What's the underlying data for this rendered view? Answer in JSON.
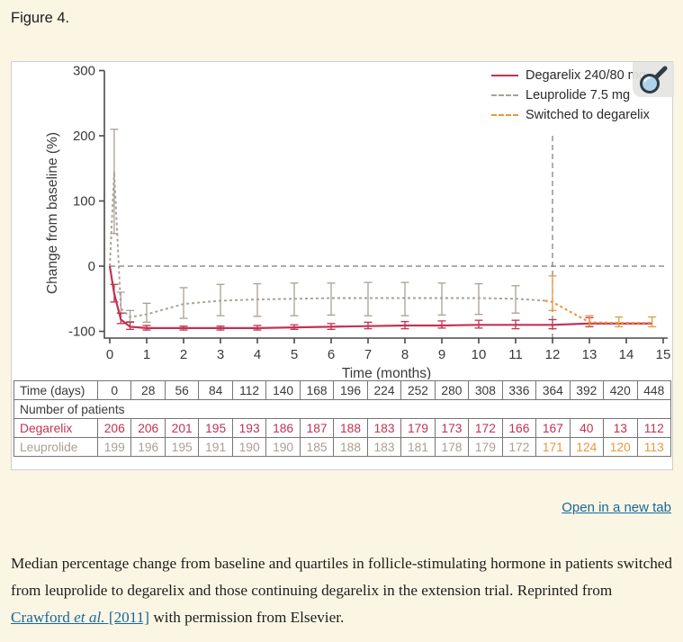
{
  "page": {
    "title": "Figure 4."
  },
  "figure": {
    "open_link_label": "Open in a new tab"
  },
  "chart_data": {
    "type": "line",
    "title": "",
    "xlabel": "Time (months)",
    "ylabel": "Change from baseline (%)",
    "xlim": [
      0,
      15
    ],
    "ylim": [
      -100,
      300
    ],
    "xticks": [
      0,
      1,
      2,
      3,
      4,
      5,
      6,
      7,
      8,
      9,
      10,
      11,
      12,
      13,
      14,
      15
    ],
    "yticks": [
      -100,
      0,
      100,
      200,
      300
    ],
    "grid": false,
    "legend_position": "top-right",
    "reference_lines": {
      "horizontal_y": 0,
      "vertical_x": 12,
      "vertical_top": 200
    },
    "series": [
      {
        "name": "Degarelix 240/80 mg",
        "color": "#c13352",
        "style": "solid",
        "width": 2.2,
        "z": 2,
        "points": [
          {
            "x": 0,
            "y": 0
          },
          {
            "x": 0.12,
            "y": -42,
            "lo": -55,
            "hi": -28
          },
          {
            "x": 0.3,
            "y": -82,
            "lo": -88,
            "hi": -72
          },
          {
            "x": 0.55,
            "y": -93,
            "lo": -97,
            "hi": -86
          },
          {
            "x": 1,
            "y": -95,
            "lo": -98,
            "hi": -91
          },
          {
            "x": 2,
            "y": -95,
            "lo": -98,
            "hi": -92
          },
          {
            "x": 3,
            "y": -95,
            "lo": -98,
            "hi": -92
          },
          {
            "x": 4,
            "y": -95,
            "lo": -98,
            "hi": -91
          },
          {
            "x": 5,
            "y": -94,
            "lo": -97,
            "hi": -90
          },
          {
            "x": 6,
            "y": -93,
            "lo": -97,
            "hi": -88
          },
          {
            "x": 7,
            "y": -92,
            "lo": -96,
            "hi": -86
          },
          {
            "x": 8,
            "y": -91,
            "lo": -96,
            "hi": -85
          },
          {
            "x": 9,
            "y": -91,
            "lo": -95,
            "hi": -84
          },
          {
            "x": 10,
            "y": -90,
            "lo": -95,
            "hi": -83
          },
          {
            "x": 11,
            "y": -90,
            "lo": -96,
            "hi": -83
          },
          {
            "x": 12,
            "y": -90,
            "lo": -96,
            "hi": -82
          },
          {
            "x": 13,
            "y": -88,
            "lo": -93,
            "hi": -79
          },
          {
            "x": 13.8,
            "y": -88
          },
          {
            "x": 14.7,
            "y": -88
          }
        ]
      },
      {
        "name": "Leuprolide 7.5 mg",
        "color": "#a9a094",
        "style": "dashed",
        "width": 1.9,
        "z": 1,
        "points": [
          {
            "x": 0,
            "y": 0
          },
          {
            "x": 0.12,
            "y": 145,
            "lo": 50,
            "hi": 210
          },
          {
            "x": 0.3,
            "y": -65,
            "lo": -72,
            "hi": -40
          },
          {
            "x": 0.55,
            "y": -78,
            "lo": -85,
            "hi": -68
          },
          {
            "x": 1,
            "y": -74,
            "lo": -86,
            "hi": -57
          },
          {
            "x": 2,
            "y": -58,
            "lo": -80,
            "hi": -33
          },
          {
            "x": 3,
            "y": -53,
            "lo": -76,
            "hi": -28
          },
          {
            "x": 4,
            "y": -51,
            "lo": -77,
            "hi": -27
          },
          {
            "x": 5,
            "y": -50,
            "lo": -76,
            "hi": -26
          },
          {
            "x": 6,
            "y": -49,
            "lo": -75,
            "hi": -26
          },
          {
            "x": 7,
            "y": -49,
            "lo": -76,
            "hi": -25
          },
          {
            "x": 8,
            "y": -49,
            "lo": -76,
            "hi": -25
          },
          {
            "x": 9,
            "y": -49,
            "lo": -75,
            "hi": -26
          },
          {
            "x": 10,
            "y": -49,
            "lo": -74,
            "hi": -27
          },
          {
            "x": 11,
            "y": -50,
            "lo": -72,
            "hi": -30
          },
          {
            "x": 11.8,
            "y": -53
          }
        ]
      },
      {
        "name": "Switched to degarelix",
        "color": "#e8973c",
        "style": "dashed",
        "width": 2.1,
        "z": 3,
        "points": [
          {
            "x": 11.8,
            "y": -53
          },
          {
            "x": 12,
            "y": -55,
            "lo": -68,
            "hi": -15
          },
          {
            "x": 13,
            "y": -86,
            "lo": -92,
            "hi": -76
          },
          {
            "x": 13.8,
            "y": -87,
            "lo": -93,
            "hi": -78
          },
          {
            "x": 14.7,
            "y": -87,
            "lo": -93,
            "hi": -78
          }
        ]
      }
    ]
  },
  "table": {
    "time_label": "Time (days)",
    "time_values": [
      "0",
      "28",
      "56",
      "84",
      "112",
      "140",
      "168",
      "196",
      "224",
      "252",
      "280",
      "308",
      "336",
      "364",
      "392",
      "420",
      "448"
    ],
    "section_label": "Number of patients",
    "highlight_color": "#e8973c",
    "rows": [
      {
        "label": "Degarelix",
        "color": "#c13352",
        "values": [
          "206",
          "206",
          "201",
          "195",
          "193",
          "186",
          "187",
          "188",
          "183",
          "179",
          "173",
          "172",
          "166",
          "167",
          "40",
          "13",
          "112"
        ]
      },
      {
        "label": "Leuprolide",
        "color": "#a9a094",
        "orange_from": 13,
        "values": [
          "199",
          "196",
          "195",
          "191",
          "190",
          "190",
          "185",
          "188",
          "183",
          "181",
          "178",
          "179",
          "172",
          "171",
          "124",
          "120",
          "113"
        ]
      }
    ]
  },
  "caption": {
    "part1": "Median percentage change from baseline and quartiles in follicle-stimulating hormone in patients switched from leuprolide to degarelix and those continuing degarelix in the extension trial. Reprinted from ",
    "link_author": "Crawford ",
    "link_etal": "et al.",
    "link_year": " [2011]",
    "part2": " with permission from Elsevier."
  }
}
